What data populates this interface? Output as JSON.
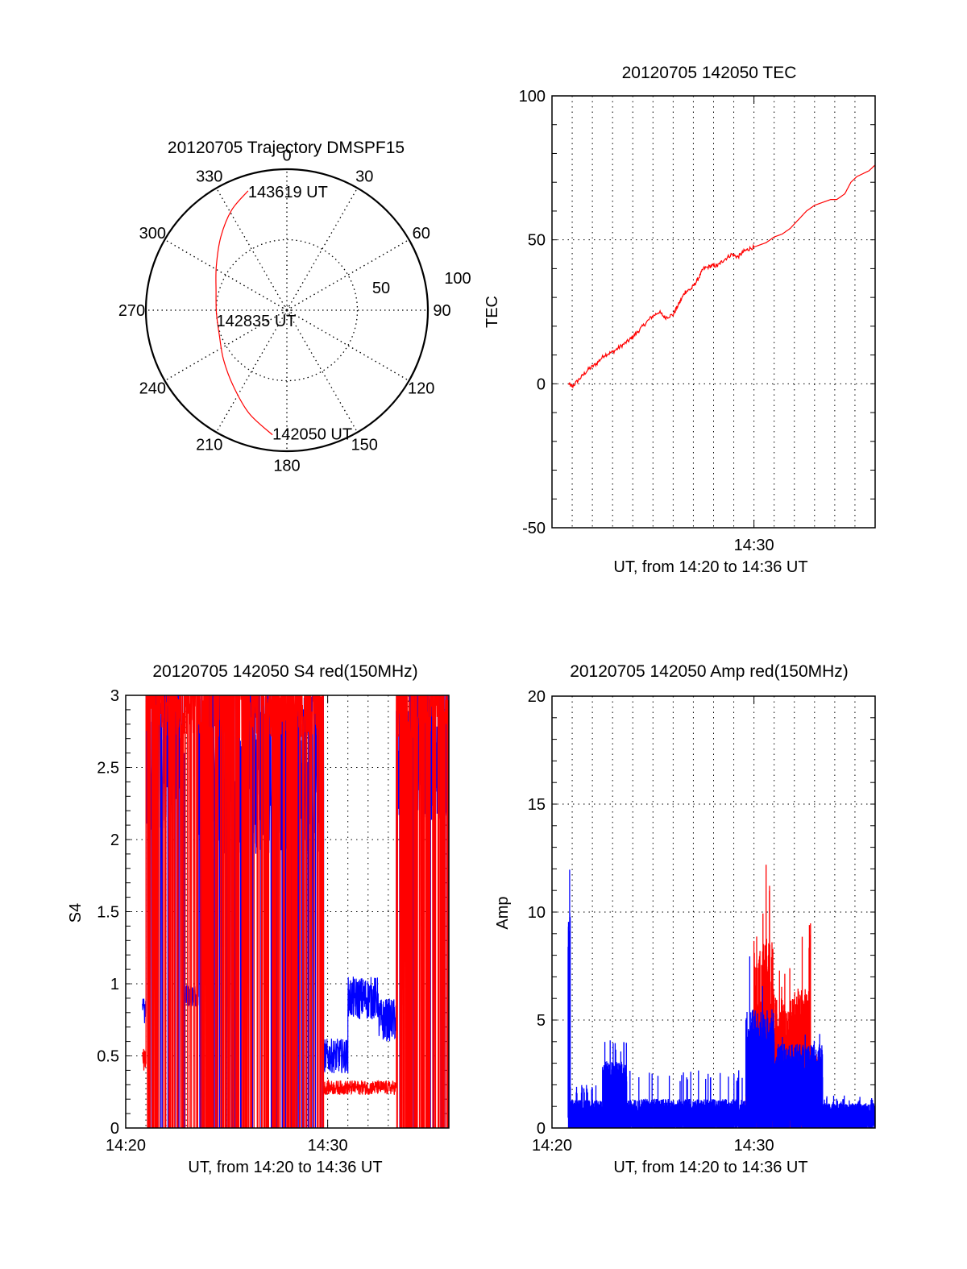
{
  "chart_data": [
    {
      "id": "trajectory",
      "type": "polar",
      "title": "20120705 Trajectory DMSPF15",
      "azimuth_labels": [
        "0",
        "30",
        "60",
        "90",
        "120",
        "150",
        "180",
        "210",
        "240",
        "270",
        "300",
        "330"
      ],
      "azimuth_values": [
        0,
        30,
        60,
        90,
        120,
        150,
        180,
        210,
        240,
        270,
        300,
        330
      ],
      "radial_labels": [
        "50",
        "100"
      ],
      "radial_values": [
        50,
        100
      ],
      "rlim": [
        0,
        100
      ],
      "grid": true,
      "trajectory_color": "#ff0000",
      "trajectory": [
        {
          "az": 186.6,
          "r": 89
        },
        {
          "az": 200,
          "r": 78
        },
        {
          "az": 215,
          "r": 66
        },
        {
          "az": 232,
          "r": 57
        },
        {
          "az": 250,
          "r": 51
        },
        {
          "az": 268,
          "r": 50
        },
        {
          "az": 285,
          "r": 52
        },
        {
          "az": 302,
          "r": 59
        },
        {
          "az": 318,
          "r": 70
        },
        {
          "az": 331,
          "r": 81
        },
        {
          "az": 342,
          "r": 89
        }
      ],
      "annotations": [
        {
          "text": "143619 UT",
          "at": "end"
        },
        {
          "text": "142835 UT",
          "at": "middle"
        },
        {
          "text": "142050 UT",
          "at": "start"
        }
      ]
    },
    {
      "id": "tec",
      "type": "line",
      "title": "20120705 142050 TEC",
      "xlabel": "UT, from 14:20 to 14:36 UT",
      "ylabel": "TEC",
      "xlim_minutes": [
        0,
        16
      ],
      "x_ticks": [
        {
          "at": 10,
          "label": "14:30"
        }
      ],
      "ylim": [
        -50,
        100
      ],
      "y_ticks": [
        {
          "v": -50,
          "label": "-50"
        },
        {
          "v": 0,
          "label": "0"
        },
        {
          "v": 50,
          "label": "50"
        },
        {
          "v": 100,
          "label": "100"
        }
      ],
      "grid": true,
      "series": [
        {
          "name": "TEC",
          "color": "#ff0000",
          "x_minutes": [
            0.83,
            1.0,
            1.4,
            1.8,
            2.2,
            2.6,
            3.0,
            3.4,
            3.8,
            4.1,
            4.5,
            4.9,
            5.3,
            5.6,
            6.0,
            6.3,
            6.6,
            6.9,
            7.2,
            7.5,
            7.9,
            8.2,
            8.5,
            8.9,
            9.2,
            9.5,
            9.8,
            10.2,
            10.6,
            11.0,
            11.4,
            11.8,
            12.2,
            12.6,
            13.0,
            13.4,
            13.8,
            14.1,
            14.5,
            14.8,
            15.1,
            15.4,
            15.7,
            16.0
          ],
          "values": [
            0,
            -1,
            2,
            5,
            7,
            10,
            11,
            13,
            15,
            17,
            20,
            23,
            25,
            23,
            24,
            28,
            32,
            33,
            36,
            40,
            41,
            41,
            43,
            45,
            44,
            46,
            47,
            48,
            49,
            51,
            52,
            54,
            57,
            60,
            62,
            63,
            64,
            64,
            66,
            70,
            72,
            73,
            74,
            76
          ]
        }
      ]
    },
    {
      "id": "s4",
      "type": "line",
      "title": "20120705 142050 S4 red(150MHz)",
      "xlabel": "UT, from 14:20 to 14:36 UT",
      "ylabel": "S4",
      "xlim_minutes": [
        0,
        16
      ],
      "x_ticks": [
        {
          "at": 0,
          "label": "14:20"
        },
        {
          "at": 10,
          "label": "14:30"
        }
      ],
      "ylim": [
        0,
        3
      ],
      "y_ticks": [
        {
          "v": 0,
          "label": "0"
        },
        {
          "v": 0.5,
          "label": "0.5"
        },
        {
          "v": 1,
          "label": "1"
        },
        {
          "v": 1.5,
          "label": "1.5"
        },
        {
          "v": 2,
          "label": "2"
        },
        {
          "v": 2.5,
          "label": "2.5"
        },
        {
          "v": 3,
          "label": "3"
        }
      ],
      "grid": true,
      "series": [
        {
          "name": "blue",
          "color": "#0000ff",
          "segments": [
            {
              "from": 0.83,
              "to": 1.0,
              "level": 0.8,
              "noise": 0.1,
              "spikes": 0.0
            },
            {
              "from": 1.0,
              "to": 2.9,
              "level": 2.6,
              "noise": 0.55,
              "spikes": 0.0
            },
            {
              "from": 2.9,
              "to": 3.6,
              "level": 0.92,
              "noise": 0.08,
              "spikes": 0.0
            },
            {
              "from": 3.6,
              "to": 9.8,
              "level": 2.5,
              "noise": 0.6,
              "spikes": 0.0
            },
            {
              "from": 9.8,
              "to": 11.0,
              "level": 0.5,
              "noise": 0.12,
              "spikes": 0.0
            },
            {
              "from": 11.0,
              "to": 12.5,
              "level": 0.9,
              "noise": 0.15,
              "spikes": 0.0
            },
            {
              "from": 12.5,
              "to": 13.4,
              "level": 0.75,
              "noise": 0.15,
              "spikes": 0.0
            },
            {
              "from": 13.4,
              "to": 16.0,
              "level": 2.6,
              "noise": 0.5,
              "spikes": 0.0
            }
          ]
        },
        {
          "name": "red",
          "color": "#ff0000",
          "segments": [
            {
              "from": 0.83,
              "to": 1.0,
              "level": 0.45,
              "noise": 0.1,
              "spikes": 0.0
            },
            {
              "from": 1.0,
              "to": 9.8,
              "level": 3.0,
              "noise": 0.3,
              "spikes": 0.12
            },
            {
              "from": 9.8,
              "to": 13.4,
              "level": 0.28,
              "noise": 0.05,
              "spikes": 0.0
            },
            {
              "from": 13.4,
              "to": 16.0,
              "level": 3.0,
              "noise": 0.3,
              "spikes": 0.2
            }
          ]
        }
      ]
    },
    {
      "id": "amp",
      "type": "line",
      "title": "20120705 142050 Amp red(150MHz)",
      "xlabel": "UT, from 14:20 to 14:36 UT",
      "ylabel": "Amp",
      "xlim_minutes": [
        0,
        16
      ],
      "x_ticks": [
        {
          "at": 0,
          "label": "14:20"
        },
        {
          "at": 10,
          "label": "14:30"
        }
      ],
      "ylim": [
        0,
        20
      ],
      "y_ticks": [
        {
          "v": 0,
          "label": "0"
        },
        {
          "v": 5,
          "label": "5"
        },
        {
          "v": 10,
          "label": "10"
        },
        {
          "v": 15,
          "label": "15"
        },
        {
          "v": 20,
          "label": "20"
        }
      ],
      "grid": true,
      "series": [
        {
          "name": "red",
          "color": "#ff0000",
          "segments": [
            {
              "from": 9.6,
              "to": 10.0,
              "level": 2.5,
              "noise": 1.0,
              "peak": 3.0
            },
            {
              "from": 10.0,
              "to": 11.0,
              "level": 6.5,
              "noise": 2.5,
              "peak": 12.3
            },
            {
              "from": 11.0,
              "to": 12.0,
              "level": 4.5,
              "noise": 1.5,
              "peak": 7.5
            },
            {
              "from": 12.0,
              "to": 12.8,
              "level": 5.0,
              "noise": 1.5,
              "peak": 9.5
            },
            {
              "from": 12.8,
              "to": 13.3,
              "level": 3.0,
              "noise": 0.4,
              "peak": 3.5
            }
          ]
        },
        {
          "name": "blue",
          "color": "#0000ff",
          "segments": [
            {
              "from": 0.8,
              "to": 0.9,
              "level": 9.0,
              "noise": 2.0,
              "peak": 12.0
            },
            {
              "from": 0.9,
              "to": 2.5,
              "level": 1.0,
              "noise": 0.3,
              "peak": 2.0
            },
            {
              "from": 2.5,
              "to": 3.7,
              "level": 2.6,
              "noise": 0.5,
              "peak": 4.2
            },
            {
              "from": 3.7,
              "to": 9.6,
              "level": 1.0,
              "noise": 0.35,
              "peak": 2.7
            },
            {
              "from": 9.6,
              "to": 11.0,
              "level": 4.0,
              "noise": 1.5,
              "peak": 8.0
            },
            {
              "from": 11.0,
              "to": 13.4,
              "level": 3.0,
              "noise": 0.9,
              "peak": 4.5
            },
            {
              "from": 13.4,
              "to": 16.0,
              "level": 0.9,
              "noise": 0.25,
              "peak": 1.5
            }
          ]
        }
      ]
    }
  ]
}
